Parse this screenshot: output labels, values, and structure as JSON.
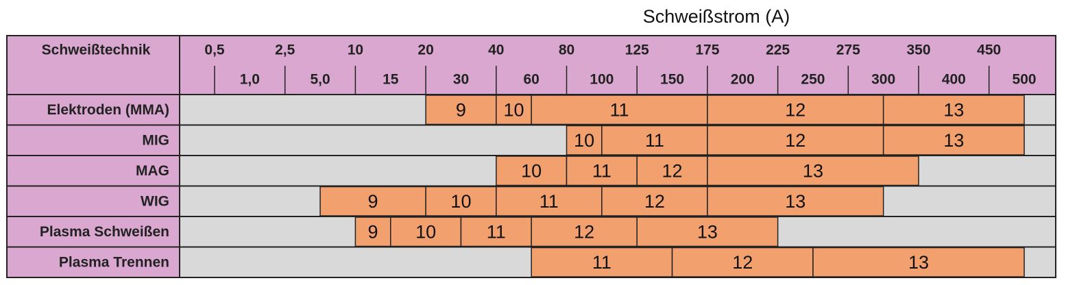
{
  "scale": {
    "title": "Schweißstrom (A)",
    "ticks": [
      {
        "value": 0.5,
        "label": "0,5"
      },
      {
        "value": 1.0,
        "label": "1,0"
      },
      {
        "value": 2.5,
        "label": "2,5"
      },
      {
        "value": 5.0,
        "label": "5,0"
      },
      10,
      15,
      20,
      30,
      40,
      60,
      80,
      100,
      125,
      150,
      175,
      200,
      225,
      250,
      275,
      300,
      350,
      400,
      450,
      500
    ]
  },
  "column_header": "Schweißtechnik",
  "rows": [
    {
      "label": "Elektroden (MMA)",
      "segments": [
        {
          "from": 20,
          "to": 40,
          "shade": 9
        },
        {
          "from": 40,
          "to": 60,
          "shade": 10
        },
        {
          "from": 60,
          "to": 175,
          "shade": 11
        },
        {
          "from": 175,
          "to": 300,
          "shade": 12
        },
        {
          "from": 300,
          "to": 500,
          "shade": 13
        }
      ]
    },
    {
      "label": "MIG",
      "segments": [
        {
          "from": 80,
          "to": 100,
          "shade": 10
        },
        {
          "from": 100,
          "to": 175,
          "shade": 11
        },
        {
          "from": 175,
          "to": 300,
          "shade": 12
        },
        {
          "from": 300,
          "to": 500,
          "shade": 13
        }
      ]
    },
    {
      "label": "MAG",
      "segments": [
        {
          "from": 40,
          "to": 80,
          "shade": 10
        },
        {
          "from": 80,
          "to": 125,
          "shade": 11
        },
        {
          "from": 125,
          "to": 175,
          "shade": 12
        },
        {
          "from": 175,
          "to": 350,
          "shade": 13
        }
      ]
    },
    {
      "label": "WIG",
      "segments": [
        {
          "from": 5.0,
          "to": 20,
          "shade": 9
        },
        {
          "from": 20,
          "to": 40,
          "shade": 10
        },
        {
          "from": 40,
          "to": 100,
          "shade": 11
        },
        {
          "from": 100,
          "to": 175,
          "shade": 12
        },
        {
          "from": 175,
          "to": 300,
          "shade": 13
        }
      ]
    },
    {
      "label": "Plasma Schweißen",
      "segments": [
        {
          "from": 10,
          "to": 15,
          "shade": 9
        },
        {
          "from": 15,
          "to": 30,
          "shade": 10
        },
        {
          "from": 30,
          "to": 60,
          "shade": 11
        },
        {
          "from": 60,
          "to": 125,
          "shade": 12
        },
        {
          "from": 125,
          "to": 225,
          "shade": 13
        }
      ]
    },
    {
      "label": "Plasma Trennen",
      "segments": [
        {
          "from": 60,
          "to": 150,
          "shade": 11
        },
        {
          "from": 150,
          "to": 250,
          "shade": 12
        },
        {
          "from": 250,
          "to": 500,
          "shade": 13
        }
      ]
    }
  ]
}
